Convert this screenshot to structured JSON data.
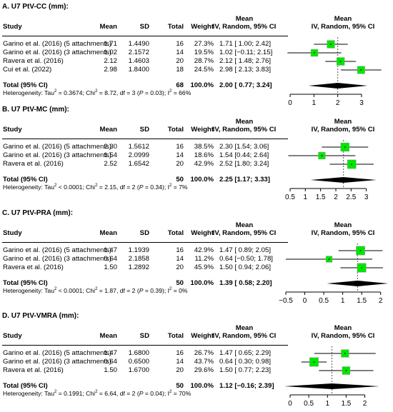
{
  "headers": {
    "study": "Study",
    "mean": "Mean",
    "sd": "SD",
    "total": "Total",
    "weight": "Weight",
    "ci_top": "Mean",
    "ci_bottom": "IV, Random, 95% CI",
    "plot_top": "Mean",
    "plot_bottom": "IV, Random, 95% CI"
  },
  "colors": {
    "box": "#00e600",
    "diamond": "#000000",
    "ref_line": "#555555"
  },
  "chart_data": [
    {
      "type": "forest",
      "title": "A. U7 PtV-CC (mm):",
      "studies": [
        {
          "study": "Garino et al. (2016) (5 attachments)",
          "mean": "1.71",
          "sd": "1.4490",
          "total": "16",
          "weight": "27.3%",
          "ci": "1.71 [ 1.00; 2.42]",
          "est": 1.71,
          "lo": 1.0,
          "hi": 2.42,
          "w": 27.3
        },
        {
          "study": "Garino et al. (2016) (3 attachments)",
          "mean": "1.02",
          "sd": "2.1572",
          "total": "14",
          "weight": "19.5%",
          "ci": "1.02 [−0.11; 2.15]",
          "est": 1.02,
          "lo": -0.11,
          "hi": 2.15,
          "w": 19.5
        },
        {
          "study": "Ravera et al. (2016)",
          "mean": "2.12",
          "sd": "1.4603",
          "total": "20",
          "weight": "28.7%",
          "ci": "2.12 [ 1.48; 2.76]",
          "est": 2.12,
          "lo": 1.48,
          "hi": 2.76,
          "w": 28.7
        },
        {
          "study": "Cui et al. (2022)",
          "mean": "2.98",
          "sd": "1.8400",
          "total": "18",
          "weight": "24.5%",
          "ci": "2.98 [ 2.13; 3.83]",
          "est": 2.98,
          "lo": 2.13,
          "hi": 3.83,
          "w": 24.5
        }
      ],
      "total": {
        "label": "Total (95% CI)",
        "n": "68",
        "weight": "100.0%",
        "ci": "2.00 [ 0.77; 3.24]",
        "est": 2.0,
        "lo": 0.77,
        "hi": 3.24
      },
      "heterogeneity": {
        "tau2": "Heterogeneity: Tau",
        "tau2_val": " = 0.3674; Chi",
        "chi2_val": " = 8.72, df = 3 (",
        "p": "P",
        "p_val": " = 0.03); I",
        "i2_val": " = 66%"
      },
      "xlim": [
        0,
        3.3
      ],
      "ticks": [
        0,
        1,
        2,
        3
      ],
      "tick_labels": [
        "0",
        "1",
        "2",
        "3"
      ]
    },
    {
      "type": "forest",
      "title": "B. U7 PtV-MC (mm):",
      "studies": [
        {
          "study": "Garino et al. (2016) (5 attachments)",
          "mean": "2.30",
          "sd": "1.5612",
          "total": "16",
          "weight": "38.5%",
          "ci": "2.30 [1.54; 3.06]",
          "est": 2.3,
          "lo": 1.54,
          "hi": 3.06,
          "w": 38.5
        },
        {
          "study": "Garino et al. (2016) (3 attachments)",
          "mean": "1.54",
          "sd": "2.0999",
          "total": "14",
          "weight": "18.6%",
          "ci": "1.54 [0.44; 2.64]",
          "est": 1.54,
          "lo": 0.44,
          "hi": 2.64,
          "w": 18.6
        },
        {
          "study": "Ravera et al. (2016)",
          "mean": "2.52",
          "sd": "1.6542",
          "total": "20",
          "weight": "42.9%",
          "ci": "2.52 [1.80; 3.24]",
          "est": 2.52,
          "lo": 1.8,
          "hi": 3.24,
          "w": 42.9
        }
      ],
      "total": {
        "label": "Total (95% CI)",
        "n": "50",
        "weight": "100.0%",
        "ci": "2.25 [1.17; 3.33]",
        "est": 2.25,
        "lo": 1.17,
        "hi": 3.33
      },
      "heterogeneity": {
        "tau2": "Heterogeneity: Tau",
        "tau2_val": " < 0.0001; Chi",
        "chi2_val": " = 2.15, df = 2 (",
        "p": "P",
        "p_val": " = 0.34); I",
        "i2_val": " = 7%"
      },
      "xlim": [
        0.5,
        3.5
      ],
      "ticks": [
        0.5,
        1,
        1.5,
        2,
        2.5,
        3
      ],
      "tick_labels": [
        "0.5",
        "1",
        "1.5",
        "2",
        "2.5",
        "3"
      ]
    },
    {
      "type": "forest",
      "title": "C. U7 PtV-PRA (mm):",
      "studies": [
        {
          "study": "Garino et al. (2016) (5 attachments)",
          "mean": "1.47",
          "sd": "1.1939",
          "total": "16",
          "weight": "42.9%",
          "ci": "1.47 [ 0.89; 2.05]",
          "est": 1.47,
          "lo": 0.89,
          "hi": 2.05,
          "w": 42.9
        },
        {
          "study": "Garino et al. (2016) (3 attachments)",
          "mean": "0.64",
          "sd": "2.1858",
          "total": "14",
          "weight": "11.2%",
          "ci": "0.64 [−0.50; 1.78]",
          "est": 0.64,
          "lo": -0.5,
          "hi": 1.78,
          "w": 11.2
        },
        {
          "study": "Ravera et al. (2016)",
          "mean": "1.50",
          "sd": "1.2892",
          "total": "20",
          "weight": "45.9%",
          "ci": "1.50 [ 0.94; 2.06]",
          "est": 1.5,
          "lo": 0.94,
          "hi": 2.06,
          "w": 45.9
        }
      ],
      "total": {
        "label": "Total (95% CI)",
        "n": "50",
        "weight": "100.0%",
        "ci": "1.39 [ 0.58; 2.20]",
        "est": 1.39,
        "lo": 0.58,
        "hi": 2.2
      },
      "heterogeneity": {
        "tau2": "Heterogeneity: Tau",
        "tau2_val": " < 0.0001; Chi",
        "chi2_val": " = 1.87, df = 2 (",
        "p": "P",
        "p_val": " = 0.39); I",
        "i2_val": " = 0%"
      },
      "xlim": [
        -0.5,
        2.1
      ],
      "ticks": [
        -0.5,
        0,
        0.5,
        1,
        1.5,
        2
      ],
      "tick_labels": [
        "−0.5",
        "0",
        "0.5",
        "1",
        "1.5",
        "2"
      ]
    },
    {
      "type": "forest",
      "title": "D. U7 PtV-VMRA (mm):",
      "studies": [
        {
          "study": "Garino et al. (2016) (5 attachments)",
          "mean": "1.47",
          "sd": "1.6800",
          "total": "16",
          "weight": "26.7%",
          "ci": "1.47 [ 0.65; 2.29]",
          "est": 1.47,
          "lo": 0.65,
          "hi": 2.29,
          "w": 26.7
        },
        {
          "study": "Garino et al. (2016) (3 attachments)",
          "mean": "0.64",
          "sd": "0.6500",
          "total": "14",
          "weight": "43.7%",
          "ci": "0.64 [ 0.30; 0.98]",
          "est": 0.64,
          "lo": 0.3,
          "hi": 0.98,
          "w": 43.7
        },
        {
          "study": "Ravera et al. (2016)",
          "mean": "1.50",
          "sd": "1.6700",
          "total": "20",
          "weight": "29.6%",
          "ci": "1.50 [ 0.77; 2.23]",
          "est": 1.5,
          "lo": 0.77,
          "hi": 2.23,
          "w": 29.6
        }
      ],
      "total": {
        "label": "Total (95% CI)",
        "n": "50",
        "weight": "100.0%",
        "ci": "1.12 [−0.16; 2.39]",
        "est": 1.12,
        "lo": -0.16,
        "hi": 2.39
      },
      "heterogeneity": {
        "tau2": "Heterogeneity: Tau",
        "tau2_val": " = 0.1991; Chi",
        "chi2_val": " = 6.64, df = 2 (",
        "p": "P",
        "p_val": " = 0.04); I",
        "i2_val": " = 70%"
      },
      "xlim": [
        0,
        2.2
      ],
      "ticks": [
        0,
        0.5,
        1,
        1.5,
        2
      ],
      "tick_labels": [
        "0",
        "0.5",
        "1",
        "1.5",
        "2"
      ]
    }
  ]
}
